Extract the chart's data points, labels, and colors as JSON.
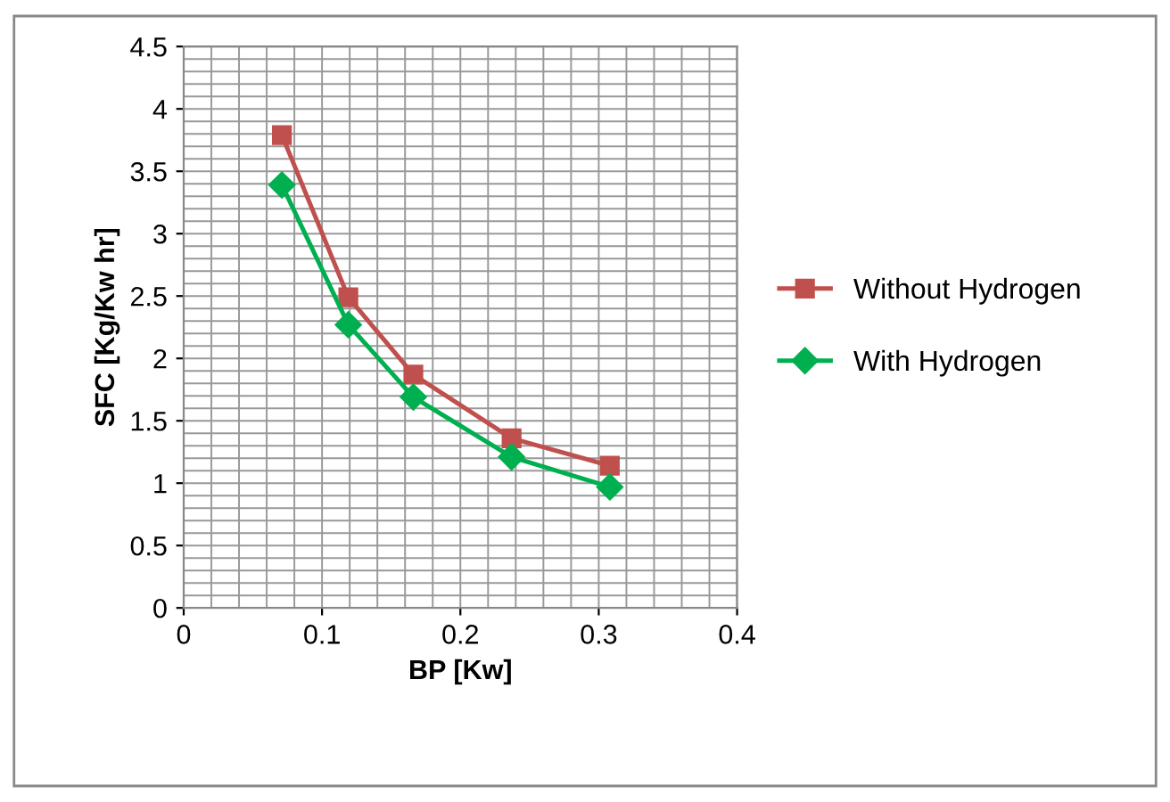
{
  "chart_data": {
    "type": "line",
    "xlabel": "BP [Kw]",
    "ylabel": "SFC [Kg/Kw hr]",
    "xlim": [
      0,
      0.4
    ],
    "xticks": [
      0,
      0.1,
      0.2,
      0.3,
      0.4
    ],
    "ylim": [
      0,
      4.5
    ],
    "yticks": [
      0,
      0.5,
      1,
      1.5,
      2,
      2.5,
      3,
      3.5,
      4,
      4.5
    ],
    "grid": true,
    "legend": "right",
    "line_style": "solid",
    "series": [
      {
        "name": "Without Hydrogen",
        "color": "#c0504d",
        "marker": "square",
        "x": [
          0.071,
          0.119,
          0.166,
          0.237,
          0.308
        ],
        "values": [
          3.79,
          2.49,
          1.87,
          1.36,
          1.14
        ]
      },
      {
        "name": "With Hydrogen",
        "color": "#00b050",
        "marker": "diamond",
        "x": [
          0.071,
          0.119,
          0.166,
          0.237,
          0.308
        ],
        "values": [
          3.39,
          2.27,
          1.69,
          1.21,
          0.97
        ]
      }
    ]
  }
}
